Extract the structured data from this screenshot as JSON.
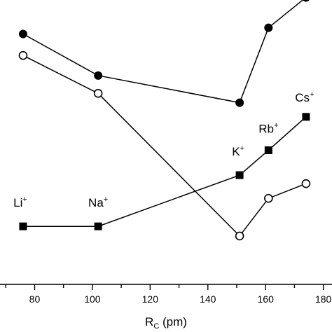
{
  "chart_data": {
    "type": "line",
    "xlabel": "R",
    "xlabel_sub": "C",
    "xlabel_unit": " (pm)",
    "xlim": [
      68,
      183
    ],
    "ylim": [
      0,
      1
    ],
    "x_ticks": [
      80,
      100,
      120,
      140,
      160,
      180
    ],
    "x_minor_step": 10,
    "grid": false,
    "series": [
      {
        "marker": "filled-circle",
        "x": [
          76,
          102,
          151,
          161,
          174
        ],
        "y": [
          0.885,
          0.738,
          0.642,
          0.907,
          1.014
        ]
      },
      {
        "marker": "open-circle",
        "x": [
          76,
          102,
          151,
          161,
          174
        ],
        "y": [
          0.809,
          0.675,
          0.171,
          0.304,
          0.356
        ]
      },
      {
        "marker": "filled-square",
        "x": [
          76,
          102,
          151,
          161,
          174
        ],
        "y": [
          0.205,
          0.205,
          0.386,
          0.474,
          0.592
        ],
        "point_labels": [
          {
            "base": "Li",
            "sup": "+"
          },
          {
            "base": "Na",
            "sup": "+"
          },
          {
            "base": "K",
            "sup": "+"
          },
          {
            "base": "Rb",
            "sup": "+"
          },
          {
            "base": "Cs",
            "sup": "+"
          }
        ]
      }
    ]
  }
}
